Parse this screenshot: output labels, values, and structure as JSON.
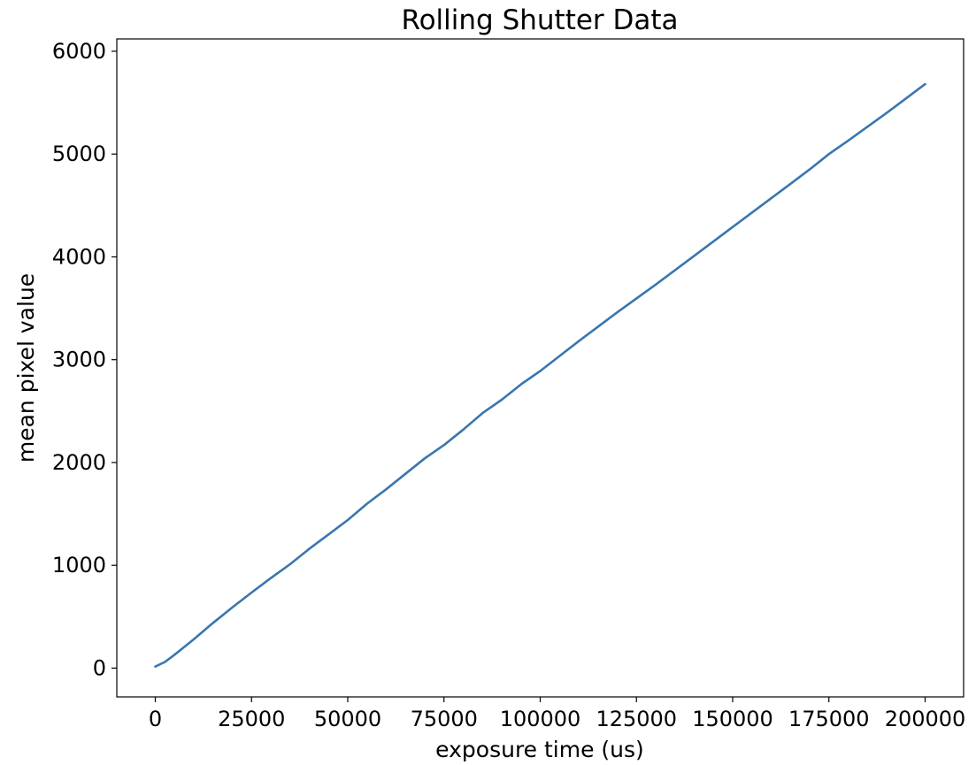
{
  "chart_data": {
    "type": "line",
    "title": "Rolling Shutter Data",
    "xlabel": "exposure time (us)",
    "ylabel": "mean pixel value",
    "xlim": [
      -10000,
      210000
    ],
    "ylim": [
      -280,
      6120
    ],
    "xticks": [
      0,
      25000,
      50000,
      75000,
      100000,
      125000,
      150000,
      175000,
      200000
    ],
    "xtick_labels": [
      "0",
      "25000",
      "50000",
      "75000",
      "100000",
      "125000",
      "150000",
      "175000",
      "200000"
    ],
    "yticks": [
      0,
      1000,
      2000,
      3000,
      4000,
      5000,
      6000
    ],
    "ytick_labels": [
      "0",
      "1000",
      "2000",
      "3000",
      "4000",
      "5000",
      "6000"
    ],
    "grid": false,
    "legend": "none",
    "series": [
      {
        "color": "#3a76af",
        "x": [
          0,
          2500,
          5000,
          10000,
          15000,
          20000,
          25000,
          30000,
          35000,
          40000,
          45000,
          50000,
          55000,
          60000,
          65000,
          70000,
          75000,
          80000,
          85000,
          90000,
          95000,
          100000,
          110000,
          120000,
          130000,
          140000,
          150000,
          160000,
          170000,
          175000,
          180000,
          190000,
          200000
        ],
        "y": [
          15,
          60,
          130,
          280,
          440,
          590,
          735,
          875,
          1010,
          1160,
          1300,
          1440,
          1600,
          1740,
          1890,
          2040,
          2170,
          2320,
          2480,
          2610,
          2760,
          2890,
          3180,
          3460,
          3730,
          4010,
          4290,
          4570,
          4850,
          5000,
          5130,
          5400,
          5680
        ]
      }
    ]
  }
}
